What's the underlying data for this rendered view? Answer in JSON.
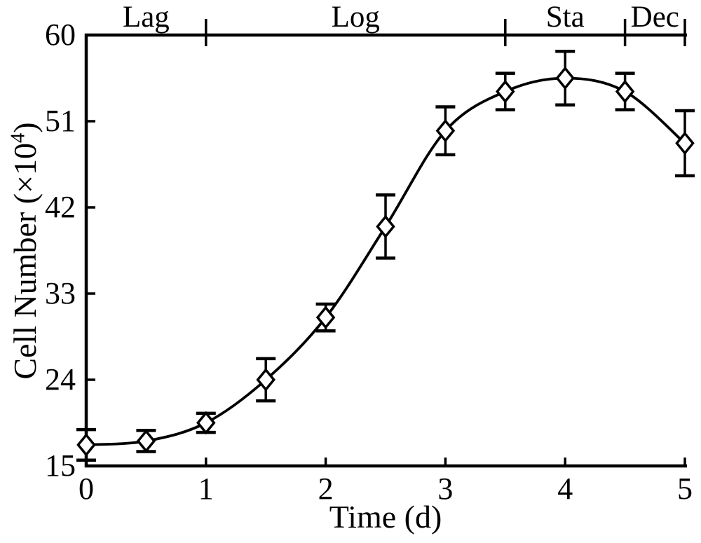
{
  "figure": {
    "background": "#ffffff",
    "ink": "#000000"
  },
  "chart_data": {
    "type": "line",
    "title": "",
    "xlabel": "Time (d)",
    "ylabel": "Cell Number (×10⁴)",
    "ylabel_parts": {
      "prefix": "Cell Number (×10",
      "sup": "4",
      "suffix": ")"
    },
    "x": [
      0,
      0.5,
      1,
      1.5,
      2,
      2.5,
      3,
      3.5,
      4,
      4.5,
      5
    ],
    "y": [
      17.2,
      17.6,
      19.5,
      24,
      30.5,
      40,
      50,
      54.1,
      55.5,
      54.1,
      48.7
    ],
    "y_err": [
      1.6,
      1.1,
      1.0,
      2.2,
      1.4,
      3.3,
      2.5,
      1.9,
      2.8,
      1.9,
      3.4
    ],
    "xlim": [
      0,
      5
    ],
    "ylim": [
      15,
      60
    ],
    "x_ticks": [
      0,
      1,
      2,
      3,
      4,
      5
    ],
    "y_ticks": [
      15,
      24,
      33,
      42,
      51,
      60
    ],
    "grid": false,
    "marker": "open-diamond",
    "line_color": "#000000",
    "legend_position": "none",
    "phases": [
      {
        "label": "Lag",
        "start": 0,
        "end": 1
      },
      {
        "label": "Log",
        "start": 1,
        "end": 3.5
      },
      {
        "label": "Sta",
        "start": 3.5,
        "end": 4.5
      },
      {
        "label": "Dec",
        "start": 4.5,
        "end": 5
      }
    ]
  }
}
